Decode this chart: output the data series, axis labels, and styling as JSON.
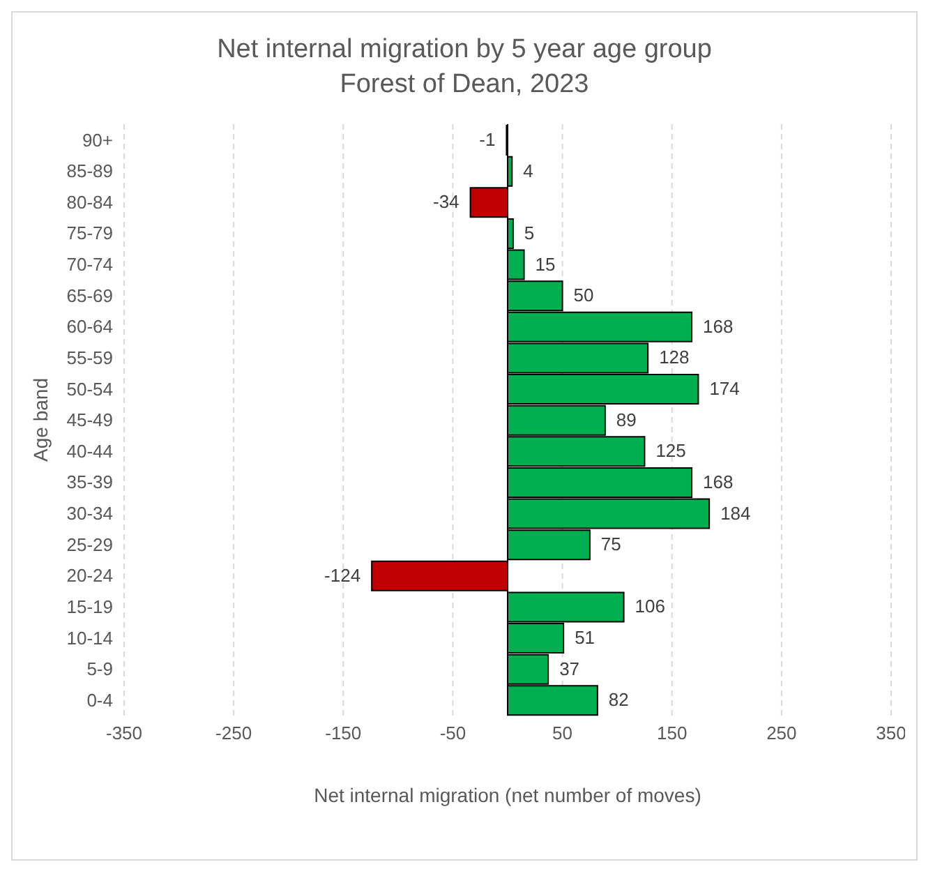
{
  "chart_data": {
    "type": "bar",
    "orientation": "horizontal",
    "title": "Net internal migration by 5 year age group",
    "subtitle": "Forest of Dean, 2023",
    "xlabel": "Net internal migration (net number of moves)",
    "ylabel": "Age band",
    "categories": [
      "90+",
      "85-89",
      "80-84",
      "75-79",
      "70-74",
      "65-69",
      "60-64",
      "55-59",
      "50-54",
      "45-49",
      "40-44",
      "35-39",
      "30-34",
      "25-29",
      "20-24",
      "15-19",
      "10-14",
      "5-9",
      "0-4"
    ],
    "values": [
      -1,
      4,
      -34,
      5,
      15,
      50,
      168,
      128,
      174,
      89,
      125,
      168,
      184,
      75,
      -124,
      106,
      51,
      37,
      82
    ],
    "colors": [
      "#c00000",
      "#00b050",
      "#c00000",
      "#00b050",
      "#00b050",
      "#00b050",
      "#00b050",
      "#00b050",
      "#00b050",
      "#00b050",
      "#00b050",
      "#00b050",
      "#00b050",
      "#00b050",
      "#c00000",
      "#00b050",
      "#00b050",
      "#00b050",
      "#00b050"
    ],
    "xlim": [
      -350,
      350
    ],
    "xticks": [
      -350,
      -250,
      -150,
      -50,
      50,
      150,
      250,
      350
    ],
    "grid": "x",
    "data_labels": true
  }
}
